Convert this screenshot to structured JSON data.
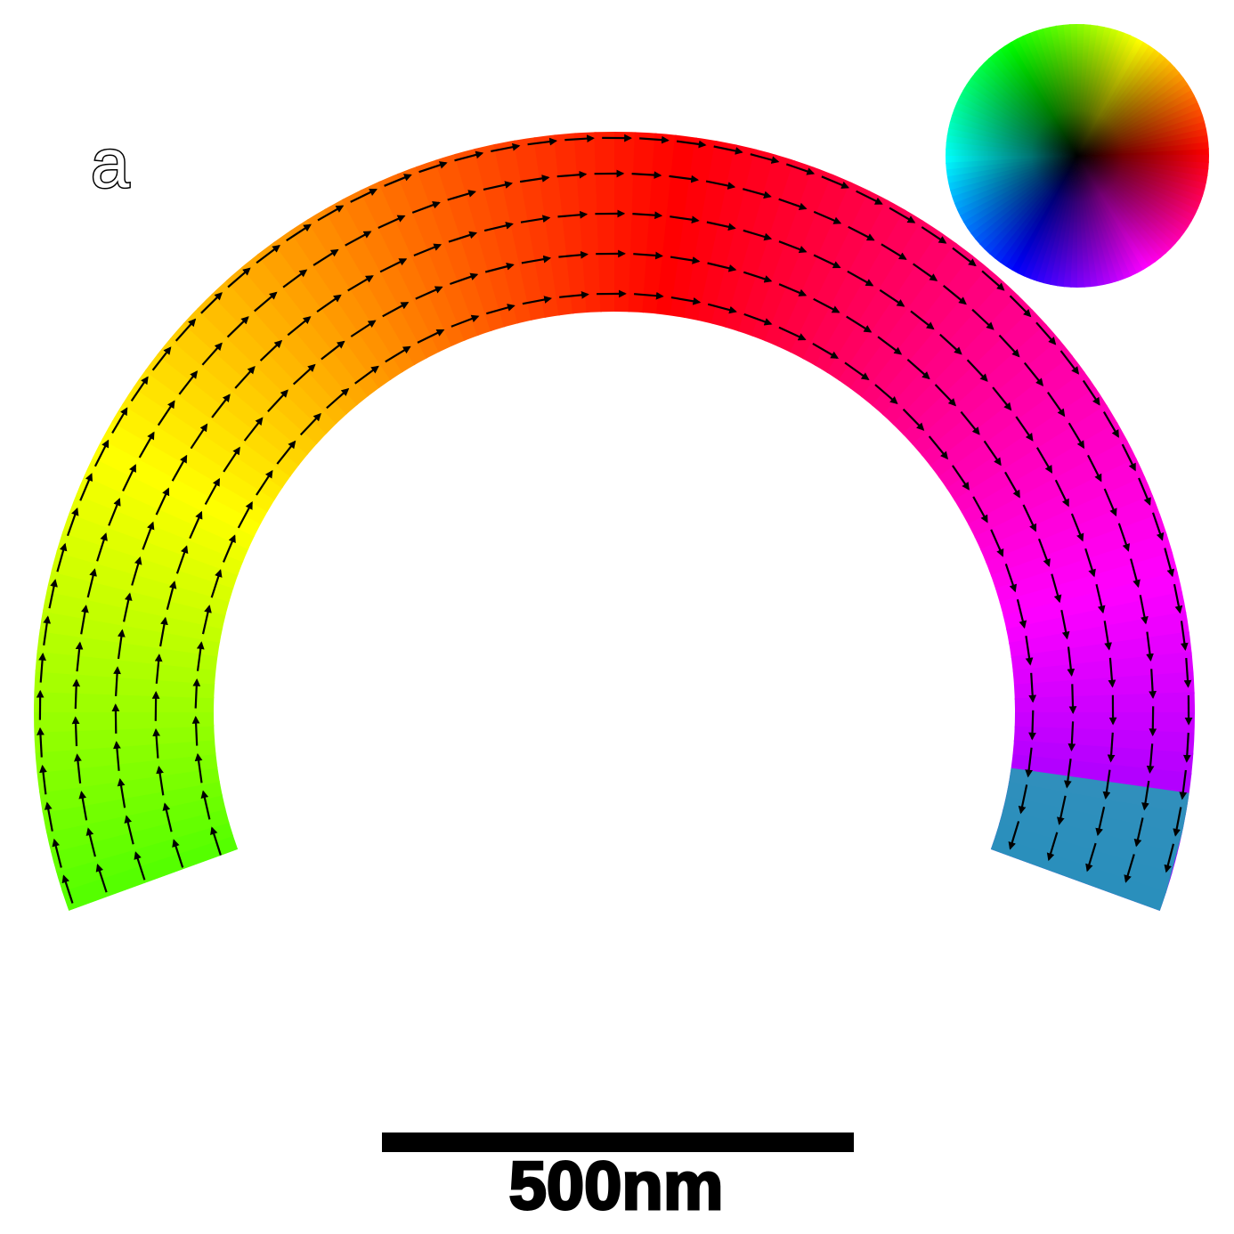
{
  "panel_label": "a",
  "scale_bar": {
    "label": "500nm"
  },
  "colors": {
    "arrow": "#000000",
    "scale_bar": "#000000",
    "background": "#ffffff"
  },
  "color_wheel": {
    "hues": [
      "#ff0000",
      "#ffff00",
      "#00ff00",
      "#00ffff",
      "#0000ff",
      "#ff00ff"
    ],
    "center": "#000000"
  }
}
